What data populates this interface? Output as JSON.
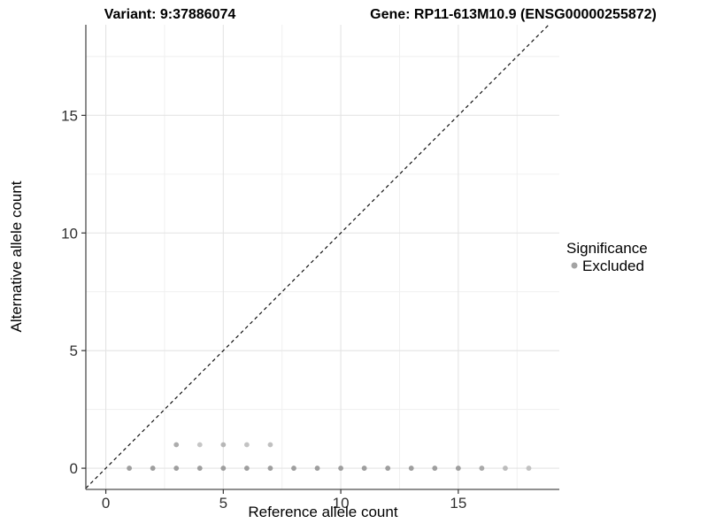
{
  "header": {
    "variant_title": "Variant: 9:37886074",
    "gene_title": "Gene: RP11-613M10.9 (ENSG00000255872)"
  },
  "legend": {
    "title": "Significance",
    "items": [
      {
        "label": "Excluded",
        "color": "#a3a3a3"
      }
    ]
  },
  "colors": {
    "background": "#ffffff",
    "grid_major": "#e4e4e4",
    "grid_minor": "#efefef",
    "axis_line": "#4d4d4d",
    "tick_mark": "#333333",
    "text": "#000000"
  },
  "chart_data": {
    "type": "scatter",
    "title_left": "Variant: 9:37886074",
    "title_right": "Gene: RP11-613M10.9 (ENSG00000255872)",
    "xlabel": "Reference allele count",
    "ylabel": "Alternative allele count",
    "xlim": [
      -0.85,
      19.3
    ],
    "ylim": [
      -0.9,
      18.85
    ],
    "x_ticks": [
      0,
      5,
      10,
      15
    ],
    "y_ticks": [
      0,
      5,
      10,
      15
    ],
    "x_minor_ticks": [
      2.5,
      7.5,
      12.5,
      17.5
    ],
    "y_minor_ticks": [
      2.5,
      7.5,
      12.5,
      17.5
    ],
    "grid": "major+minor",
    "legend_position": "right",
    "point_radius": 2.9,
    "identity_line": {
      "style": "dashed",
      "slope": 1,
      "intercept": 0,
      "color": "#111111"
    },
    "series": [
      {
        "name": "Excluded",
        "points": [
          {
            "x": 1,
            "y": 0,
            "color": "#9e9e9e"
          },
          {
            "x": 2,
            "y": 0,
            "color": "#9e9e9e"
          },
          {
            "x": 3,
            "y": 0,
            "color": "#9e9e9e"
          },
          {
            "x": 4,
            "y": 0,
            "color": "#9e9e9e"
          },
          {
            "x": 5,
            "y": 0,
            "color": "#9e9e9e"
          },
          {
            "x": 6,
            "y": 0,
            "color": "#9e9e9e"
          },
          {
            "x": 7,
            "y": 0,
            "color": "#9e9e9e"
          },
          {
            "x": 8,
            "y": 0,
            "color": "#9e9e9e"
          },
          {
            "x": 9,
            "y": 0,
            "color": "#9e9e9e"
          },
          {
            "x": 10,
            "y": 0,
            "color": "#9e9e9e"
          },
          {
            "x": 11,
            "y": 0,
            "color": "#9e9e9e"
          },
          {
            "x": 12,
            "y": 0,
            "color": "#9e9e9e"
          },
          {
            "x": 13,
            "y": 0,
            "color": "#9e9e9e"
          },
          {
            "x": 14,
            "y": 0,
            "color": "#9e9e9e"
          },
          {
            "x": 15,
            "y": 0,
            "color": "#9e9e9e"
          },
          {
            "x": 16,
            "y": 0,
            "color": "#a9a9a9"
          },
          {
            "x": 17,
            "y": 0,
            "color": "#bcbcbc"
          },
          {
            "x": 18,
            "y": 0,
            "color": "#c2c2c2"
          },
          {
            "x": 3,
            "y": 1,
            "color": "#acacac"
          },
          {
            "x": 4,
            "y": 1,
            "color": "#c6c6c6"
          },
          {
            "x": 5,
            "y": 1,
            "color": "#b7b7b7"
          },
          {
            "x": 6,
            "y": 1,
            "color": "#c3c3c3"
          },
          {
            "x": 7,
            "y": 1,
            "color": "#c0c0c0"
          }
        ]
      }
    ]
  }
}
